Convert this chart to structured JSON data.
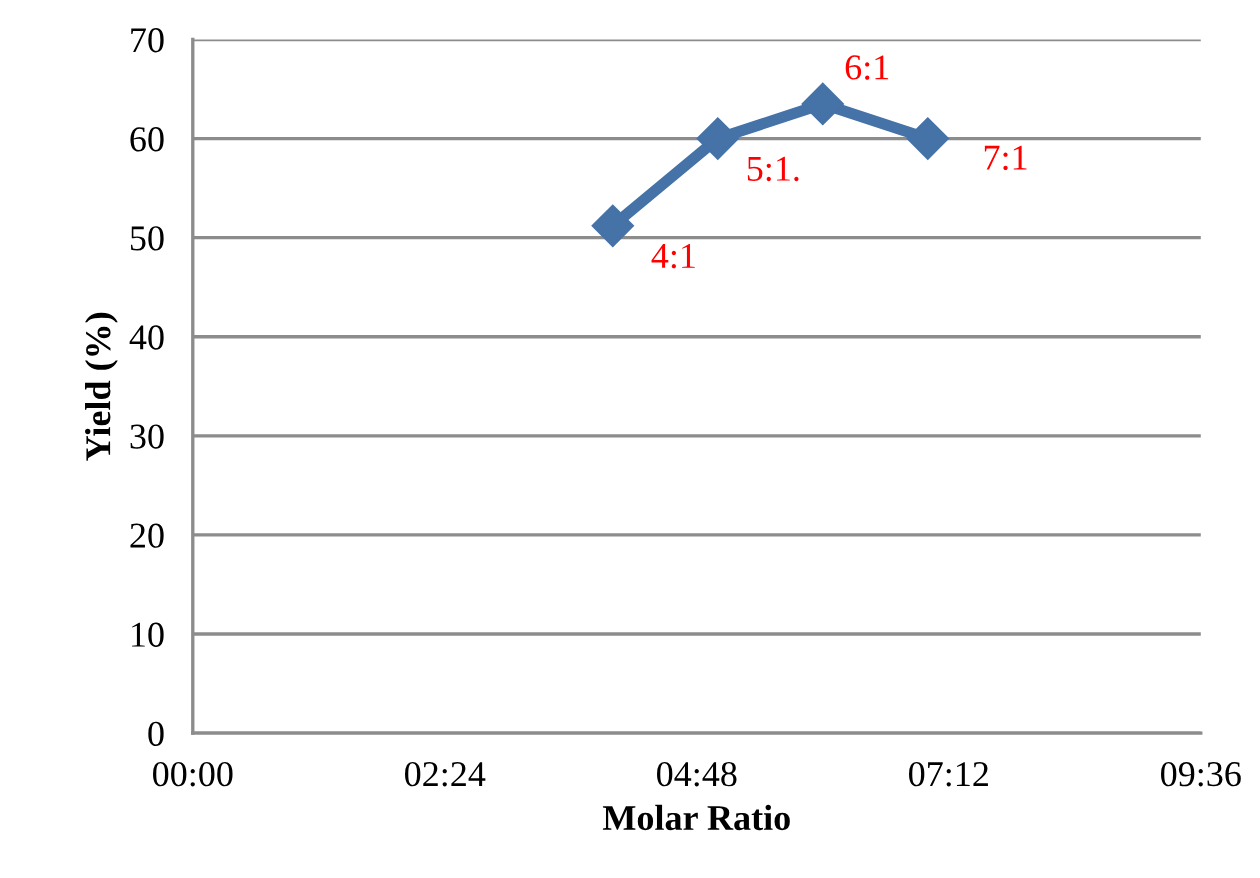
{
  "chart_data": {
    "type": "line",
    "xlabel": "Molar Ratio",
    "ylabel": "Yield (%)",
    "x": [
      4,
      5,
      6,
      7
    ],
    "series": [
      {
        "color": "#4572a7",
        "values": [
          51.2,
          60,
          63.5,
          60
        ]
      }
    ],
    "xlim": [
      0,
      9.6
    ],
    "xticks": [
      {
        "value": 0,
        "label": "00:00"
      },
      {
        "value": 2.4,
        "label": "02:24"
      },
      {
        "value": 4.8,
        "label": "04:48"
      },
      {
        "value": 7.2,
        "label": "07:12"
      },
      {
        "value": 9.6,
        "label": "09:36"
      }
    ],
    "ylim": [
      0,
      70
    ],
    "yticks": [
      0,
      10,
      20,
      30,
      40,
      50,
      60,
      70
    ],
    "grid": "y",
    "marker": "diamond",
    "line_style": "solid",
    "legend": false,
    "annotations": [
      {
        "text": "4:1",
        "x": 4,
        "y": 51.2
      },
      {
        "text": "5:1.",
        "x": 5,
        "y": 60
      },
      {
        "text": "6:1",
        "x": 6,
        "y": 63.5
      },
      {
        "text": "7:1",
        "x": 7,
        "y": 60
      }
    ]
  }
}
